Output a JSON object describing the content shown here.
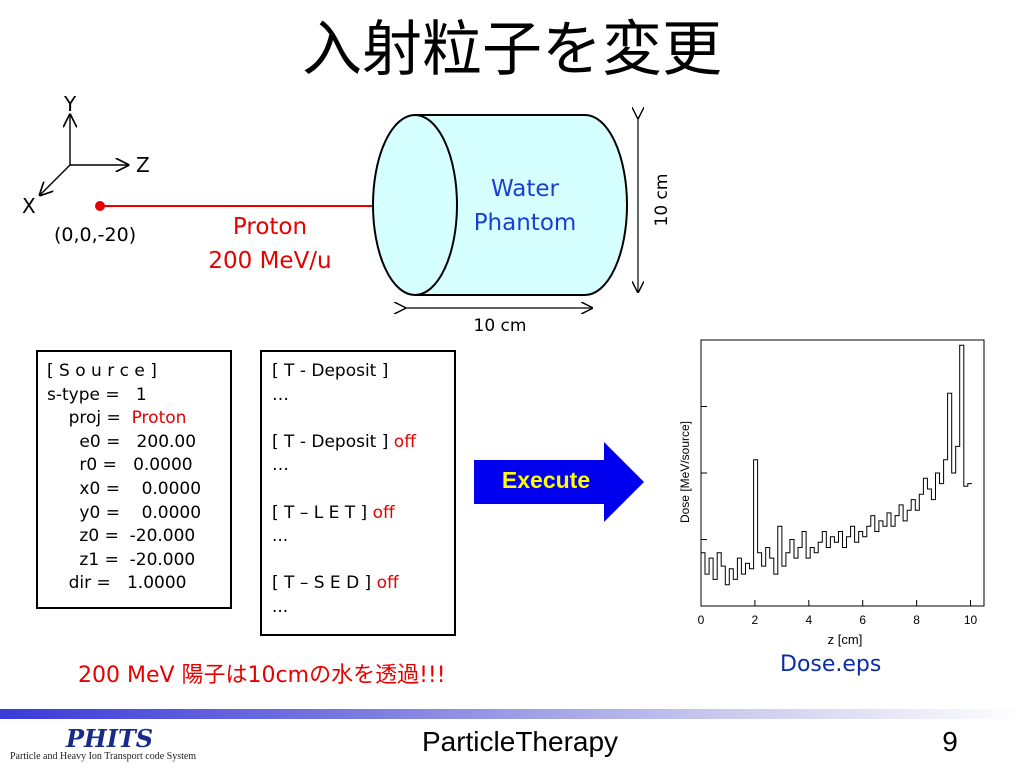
{
  "title": "入射粒子を変更",
  "axes": {
    "y": "Y",
    "z": "Z",
    "x": "X"
  },
  "source_point": {
    "label": "(0,0,-20)",
    "color": "#e60000"
  },
  "beam": {
    "particle": "Proton",
    "energy": "200 MeV/u",
    "color": "#e60000"
  },
  "phantom": {
    "line1": "Water",
    "line2": "Phantom",
    "fill": "#d6ffff",
    "height_label": "10 cm",
    "length_label": "10 cm"
  },
  "source_box": {
    "lines": [
      "[ S o u r c e ]",
      "s-type =   1",
      "    proj =  ",
      "      e0 =   200.00",
      "      r0 =   0.0000",
      "      x0 =    0.0000",
      "      y0 =    0.0000",
      "      z0 =  -20.000",
      "      z1 =  -20.000",
      "    dir =   1.0000"
    ],
    "proj_value": "Proton"
  },
  "tally_box": {
    "lines": [
      {
        "text": "[ T - Deposit ]",
        "flag": ""
      },
      {
        "text": "…",
        "flag": ""
      },
      {
        "text": "",
        "flag": ""
      },
      {
        "text": "[ T - Deposit ] ",
        "flag": "off"
      },
      {
        "text": "…",
        "flag": ""
      },
      {
        "text": "",
        "flag": ""
      },
      {
        "text": "[ T – L E T ] ",
        "flag": "off"
      },
      {
        "text": "...",
        "flag": ""
      },
      {
        "text": "",
        "flag": ""
      },
      {
        "text": "[ T – S E D ] ",
        "flag": "off"
      },
      {
        "text": "...",
        "flag": ""
      }
    ]
  },
  "execute": {
    "label": "Execute",
    "fill": "#0000ee",
    "text_color": "#ffff00"
  },
  "chart_data": {
    "type": "line",
    "xlabel": "z [cm]",
    "ylabel": "Dose [MeV/source]",
    "xlim": [
      0,
      10.5
    ],
    "ylim": [
      0,
      1
    ],
    "x_ticks": [
      "0",
      "2",
      "4",
      "6",
      "8",
      "10"
    ],
    "x_tick_values": [
      0,
      2,
      4,
      6,
      8,
      10
    ],
    "series": [
      {
        "x": [
          0,
          0.15,
          0.3,
          0.45,
          0.6,
          0.75,
          0.9,
          1.05,
          1.2,
          1.35,
          1.5,
          1.65,
          1.8,
          1.95,
          2.1,
          2.25,
          2.4,
          2.55,
          2.7,
          2.85,
          3.0,
          3.15,
          3.3,
          3.45,
          3.6,
          3.75,
          3.9,
          4.05,
          4.2,
          4.35,
          4.5,
          4.65,
          4.8,
          4.95,
          5.1,
          5.25,
          5.4,
          5.55,
          5.7,
          5.85,
          6.0,
          6.15,
          6.3,
          6.45,
          6.6,
          6.75,
          6.9,
          7.05,
          7.2,
          7.35,
          7.5,
          7.65,
          7.8,
          7.95,
          8.1,
          8.25,
          8.4,
          8.55,
          8.7,
          8.85,
          9.0,
          9.15,
          9.3,
          9.45,
          9.6,
          9.75,
          9.9
        ],
        "y": [
          0.2,
          0.12,
          0.18,
          0.1,
          0.2,
          0.15,
          0.08,
          0.14,
          0.1,
          0.18,
          0.12,
          0.16,
          0.14,
          0.55,
          0.2,
          0.15,
          0.22,
          0.18,
          0.12,
          0.3,
          0.15,
          0.2,
          0.25,
          0.18,
          0.22,
          0.28,
          0.18,
          0.22,
          0.2,
          0.24,
          0.28,
          0.22,
          0.26,
          0.24,
          0.28,
          0.22,
          0.26,
          0.3,
          0.24,
          0.28,
          0.26,
          0.3,
          0.34,
          0.28,
          0.32,
          0.3,
          0.35,
          0.3,
          0.34,
          0.38,
          0.32,
          0.36,
          0.4,
          0.36,
          0.42,
          0.48,
          0.44,
          0.4,
          0.5,
          0.46,
          0.55,
          0.8,
          0.5,
          0.6,
          0.98,
          0.45,
          0.46
        ]
      }
    ]
  },
  "dose_file": "Dose.eps",
  "summary": "200 MeV 陽子は10cmの水を透過!!!",
  "footer": {
    "logo": "PHITS",
    "logo_sub": "Particle and Heavy Ion Transport code System",
    "title": "ParticleTherapy",
    "page": "9"
  }
}
